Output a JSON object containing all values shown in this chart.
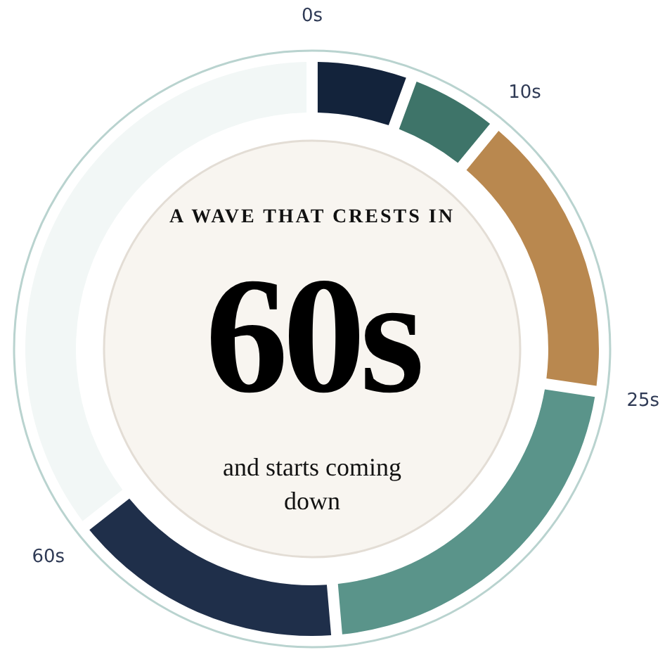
{
  "chart_data": {
    "type": "donut",
    "title": "A WAVE THAT CRESTS IN",
    "annotations": [
      "60s",
      "and starts coming down"
    ],
    "categories": [
      "0s",
      null,
      "10s",
      "25s",
      null,
      "60s"
    ],
    "values": [
      5.3,
      5,
      16.4,
      21.4,
      15.8,
      36.1
    ],
    "colors": [
      "#13233b",
      "#3e7469",
      "#b9884f",
      "#5a948a",
      "#1f2f4a",
      "#f2f7f6"
    ]
  }
}
